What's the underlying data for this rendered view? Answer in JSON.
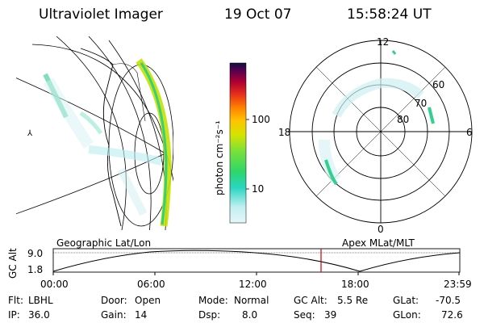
{
  "header": {
    "instrument": "Ultraviolet Imager",
    "date": "19 Oct 07",
    "time": "15:58:24 UT"
  },
  "colorbar": {
    "label": "photon cm⁻²s⁻¹",
    "ticks": [
      "100",
      "10"
    ]
  },
  "polar": {
    "hour_labels": [
      "12",
      "18",
      "6",
      "0"
    ],
    "lat_labels": [
      "60",
      "70",
      "80"
    ]
  },
  "timeline": {
    "y_axis_label": "GC Alt",
    "y_ticks": [
      "9.0",
      "1.8"
    ],
    "left_caption": "Geographic Lat/Lon",
    "right_caption": "Apex MLat/MLT",
    "x_ticks": [
      "00:00",
      "06:00",
      "12:00",
      "18:00",
      "23:59"
    ],
    "marker_color": "#cc0000"
  },
  "info": {
    "filter_label": "Flt:",
    "filter_value": "LBHL",
    "ip_label": "IP:",
    "ip_value": "36.0",
    "door_label": "Door:",
    "door_value": "Open",
    "gain_label": "Gain:",
    "gain_value": "14",
    "mode_label": "Mode:",
    "mode_value": "Normal",
    "dsp_label": "Dsp:",
    "dsp_value": "8.0",
    "gcalt_label": "GC Alt:",
    "gcalt_value": "5.5 Re",
    "seq_label": "Seq:",
    "seq_value": "39",
    "glat_label": "GLat:",
    "glat_value": "-70.5",
    "glon_label": "GLon:",
    "glon_value": "72.6"
  }
}
